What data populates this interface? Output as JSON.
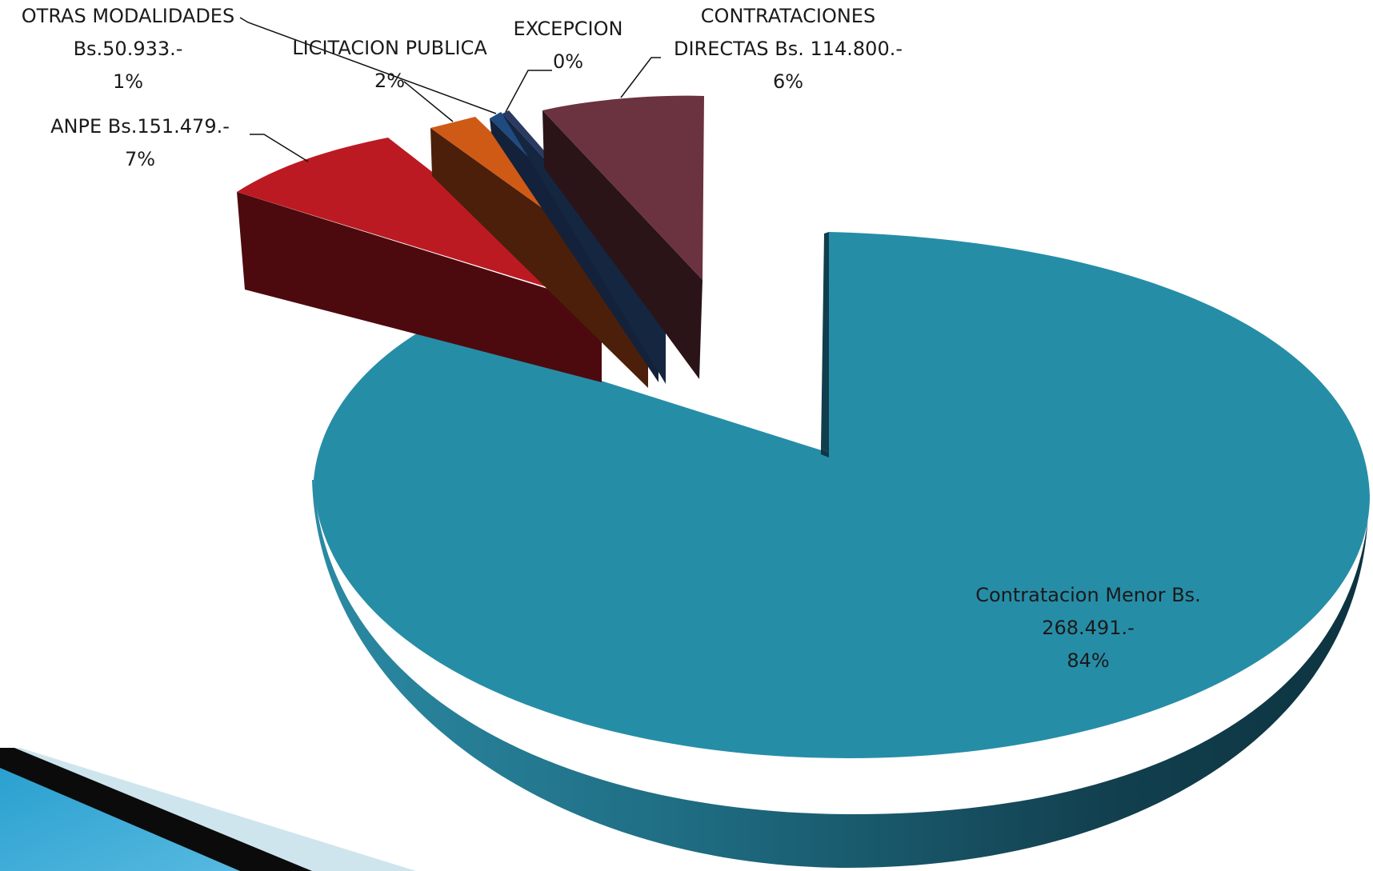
{
  "chart_data": {
    "type": "pie",
    "slices": [
      {
        "key": "contratacion_menor",
        "label_lines": [
          "Contratacion Menor  Bs.",
          "268.491.-",
          "84%"
        ],
        "value": 84,
        "color": "#268da7"
      },
      {
        "key": "anpe",
        "label_lines": [
          "ANPE  Bs.151.479.-",
          "7%"
        ],
        "value": 7,
        "color": "#bc1a22"
      },
      {
        "key": "licitacion_publica",
        "label_lines": [
          "LICITACION PUBLICA",
          "2%"
        ],
        "value": 2,
        "color": "#cf5a16"
      },
      {
        "key": "otras_modalidades",
        "label_lines": [
          "OTRAS MODALIDADES",
          "Bs.50.933.-",
          "1%"
        ],
        "value": 1,
        "color": "#1f4b80"
      },
      {
        "key": "excepcion",
        "label_lines": [
          "EXCEPCION",
          "0%"
        ],
        "value": 0.3,
        "color": "#2a3a60"
      },
      {
        "key": "contrataciones_directas",
        "label_lines": [
          "CONTRATACIONES",
          "DIRECTAS Bs. 114.800.-",
          "6%"
        ],
        "value": 6,
        "color": "#6b3240"
      }
    ]
  },
  "labels": {
    "otras": [
      "OTRAS MODALIDADES",
      "Bs.50.933.-",
      "1%"
    ],
    "licitacion": [
      "LICITACION PUBLICA",
      "2%"
    ],
    "excepcion": [
      "EXCEPCION",
      "0%"
    ],
    "directas": [
      "CONTRATACIONES",
      "DIRECTAS Bs. 114.800.-",
      "6%"
    ],
    "anpe": [
      "ANPE  Bs.151.479.-",
      "7%"
    ],
    "menor": [
      "Contratacion Menor  Bs.",
      "268.491.-",
      "84%"
    ]
  },
  "colors": {
    "menor_top": "#268da7",
    "anpe_top": "#bc1a22",
    "licitacion_top": "#cf5a16",
    "otras_top": "#1f4b80",
    "directas_top": "#6b3240",
    "decor_stripe": "#1c8ab8"
  }
}
